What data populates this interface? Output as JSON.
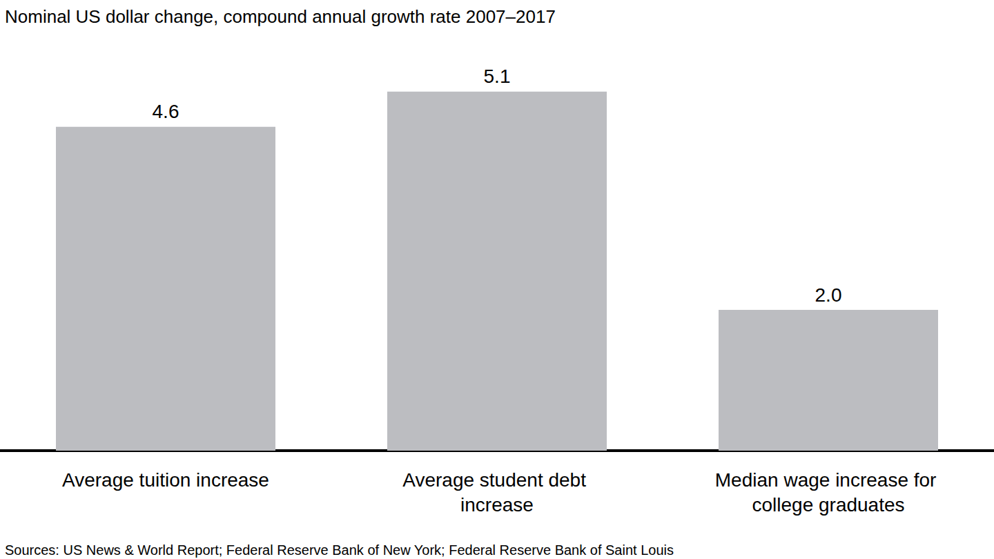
{
  "chart_data": {
    "type": "bar",
    "title": "Nominal US dollar change, compound annual growth rate 2007–2017",
    "categories": [
      "Average tuition increase",
      "Average student debt increase",
      "Median wage increase for college graduates"
    ],
    "values": [
      4.6,
      5.1,
      2.0
    ],
    "value_labels": [
      "4.6",
      "5.1",
      "2.0"
    ],
    "color": "#bcbdc1",
    "ylim": [
      0,
      5.5
    ],
    "grid": false,
    "data_labels": true,
    "tick_labels": "x",
    "source": "Sources: US News & World Report; Federal Reserve Bank of New York; Federal Reserve Bank of Saint Louis"
  }
}
